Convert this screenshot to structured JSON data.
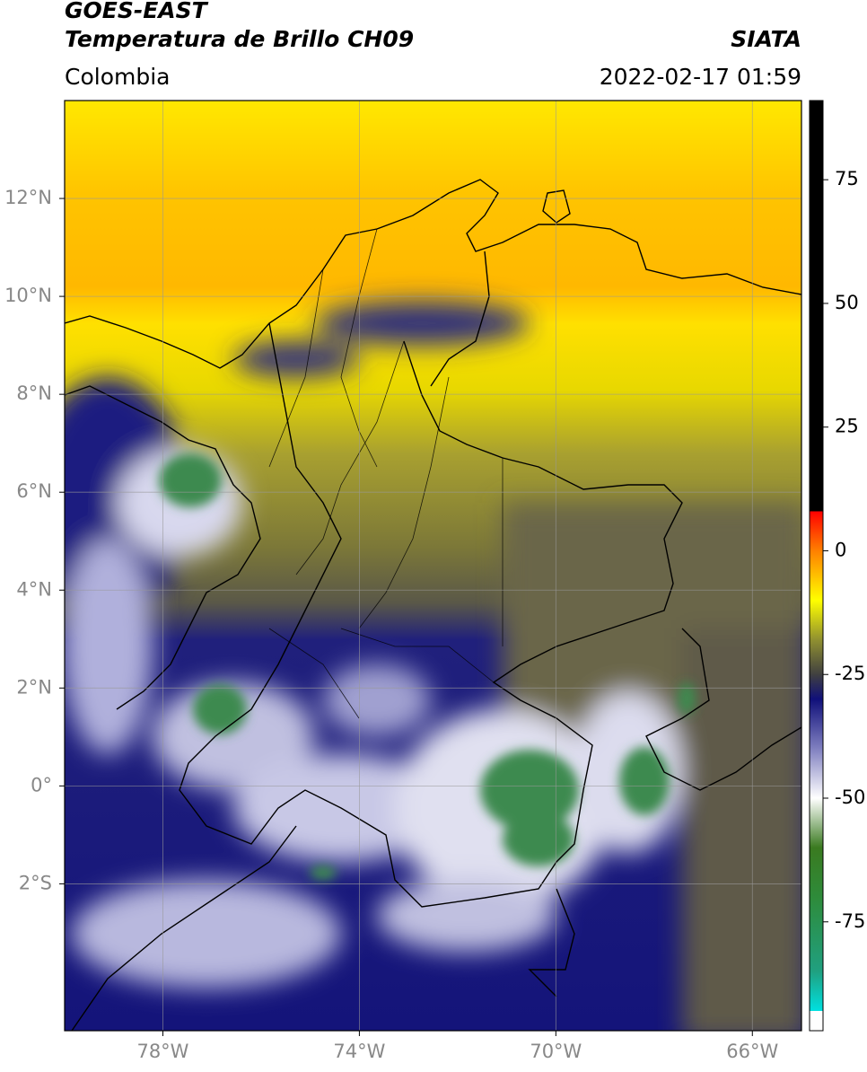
{
  "header": {
    "title_line1": "GOES-EAST",
    "title_line2": "Temperatura de Brillo CH09",
    "source": "SIATA",
    "region": "Colombia",
    "timestamp": "2022-02-17 01:59"
  },
  "map": {
    "xlim": [
      -80,
      -65
    ],
    "ylim": [
      -5,
      14
    ],
    "grid": true,
    "xticks": [
      {
        "value": -78,
        "label": "78°W"
      },
      {
        "value": -74,
        "label": "74°W"
      },
      {
        "value": -70,
        "label": "70°W"
      },
      {
        "value": -66,
        "label": "66°W"
      }
    ],
    "yticks": [
      {
        "value": 12,
        "label": "12°N"
      },
      {
        "value": 10,
        "label": "10°N"
      },
      {
        "value": 8,
        "label": "8°N"
      },
      {
        "value": 6,
        "label": "6°N"
      },
      {
        "value": 4,
        "label": "4°N"
      },
      {
        "value": 2,
        "label": "2°N"
      },
      {
        "value": 0,
        "label": "0°"
      },
      {
        "value": -2,
        "label": "2°S"
      }
    ]
  },
  "colorbar": {
    "lim": [
      -97,
      91
    ],
    "ticks": [
      75,
      50,
      25,
      0,
      -25,
      -50,
      -75
    ],
    "stops": [
      {
        "value": -97,
        "color": "#ffffff"
      },
      {
        "value": -93,
        "color": "#ffffff"
      },
      {
        "value": -93,
        "color": "#00e0e0"
      },
      {
        "value": -85,
        "color": "#20a080"
      },
      {
        "value": -70,
        "color": "#2e8b3a"
      },
      {
        "value": -60,
        "color": "#3a7a20"
      },
      {
        "value": -50,
        "color": "#ffffff"
      },
      {
        "value": -40,
        "color": "#8080c0"
      },
      {
        "value": -30,
        "color": "#10107a"
      },
      {
        "value": -25,
        "color": "#404040"
      },
      {
        "value": -18,
        "color": "#909030"
      },
      {
        "value": -10,
        "color": "#ffff00"
      },
      {
        "value": 0,
        "color": "#ff8000"
      },
      {
        "value": 8,
        "color": "#ff0000"
      },
      {
        "value": 8,
        "color": "#000000"
      },
      {
        "value": 91,
        "color": "#000000"
      }
    ]
  }
}
